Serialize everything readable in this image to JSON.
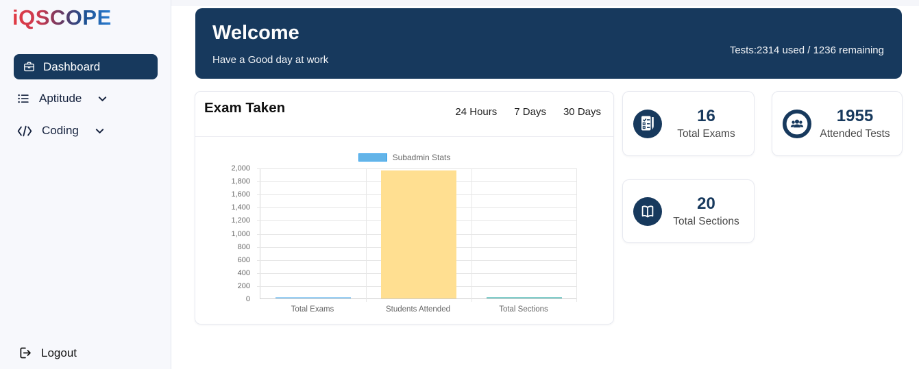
{
  "app": {
    "logo_text": "iQSCOPE"
  },
  "sidebar": {
    "items": [
      {
        "label": "Dashboard",
        "icon": "briefcase-icon",
        "active": true
      },
      {
        "label": "Aptitude",
        "icon": "list-icon",
        "has_submenu": true
      },
      {
        "label": "Coding",
        "icon": "code-icon",
        "has_submenu": true
      }
    ],
    "logout_label": "Logout"
  },
  "banner": {
    "title": "Welcome",
    "subtitle": "Have a Good day at work",
    "tests_info": "Tests:2314 used / 1236 remaining"
  },
  "exam_panel": {
    "title": "Exam Taken",
    "filters": [
      "24 Hours",
      "7 Days",
      "30 Days"
    ]
  },
  "chart_data": {
    "type": "bar",
    "title": "",
    "legend": [
      {
        "label": "Subadmin Stats",
        "fill": "#63b4e8",
        "border": "#36a2eb"
      }
    ],
    "legend_position": "top",
    "categories": [
      "Total Exams",
      "Students Attended",
      "Total Sections"
    ],
    "values": [
      16,
      1955,
      20
    ],
    "bar_colors": [
      "#9ad0f5",
      "#ffdf91",
      "#82cecb"
    ],
    "ylim": [
      0,
      2000
    ],
    "y_ticks": [
      "2,000",
      "1,800",
      "1,600",
      "1,400",
      "1,200",
      "1,000",
      "800",
      "600",
      "400",
      "200",
      "0"
    ],
    "grid": true,
    "xlabel": "",
    "ylabel": ""
  },
  "stat_cards": [
    {
      "value": "16",
      "label": "Total Exams",
      "icon": "exam-checklist-icon"
    },
    {
      "value": "1955",
      "label": "Attended Tests",
      "icon": "attendees-icon"
    },
    {
      "value": "20",
      "label": "Total Sections",
      "icon": "sections-book-icon"
    }
  ],
  "colors": {
    "navy": "#17395d",
    "sidebar_bg": "#f7f8fc",
    "banner_bg": "#17395d",
    "grid_line": "#e7e7e7",
    "tick_text": "#666666"
  }
}
